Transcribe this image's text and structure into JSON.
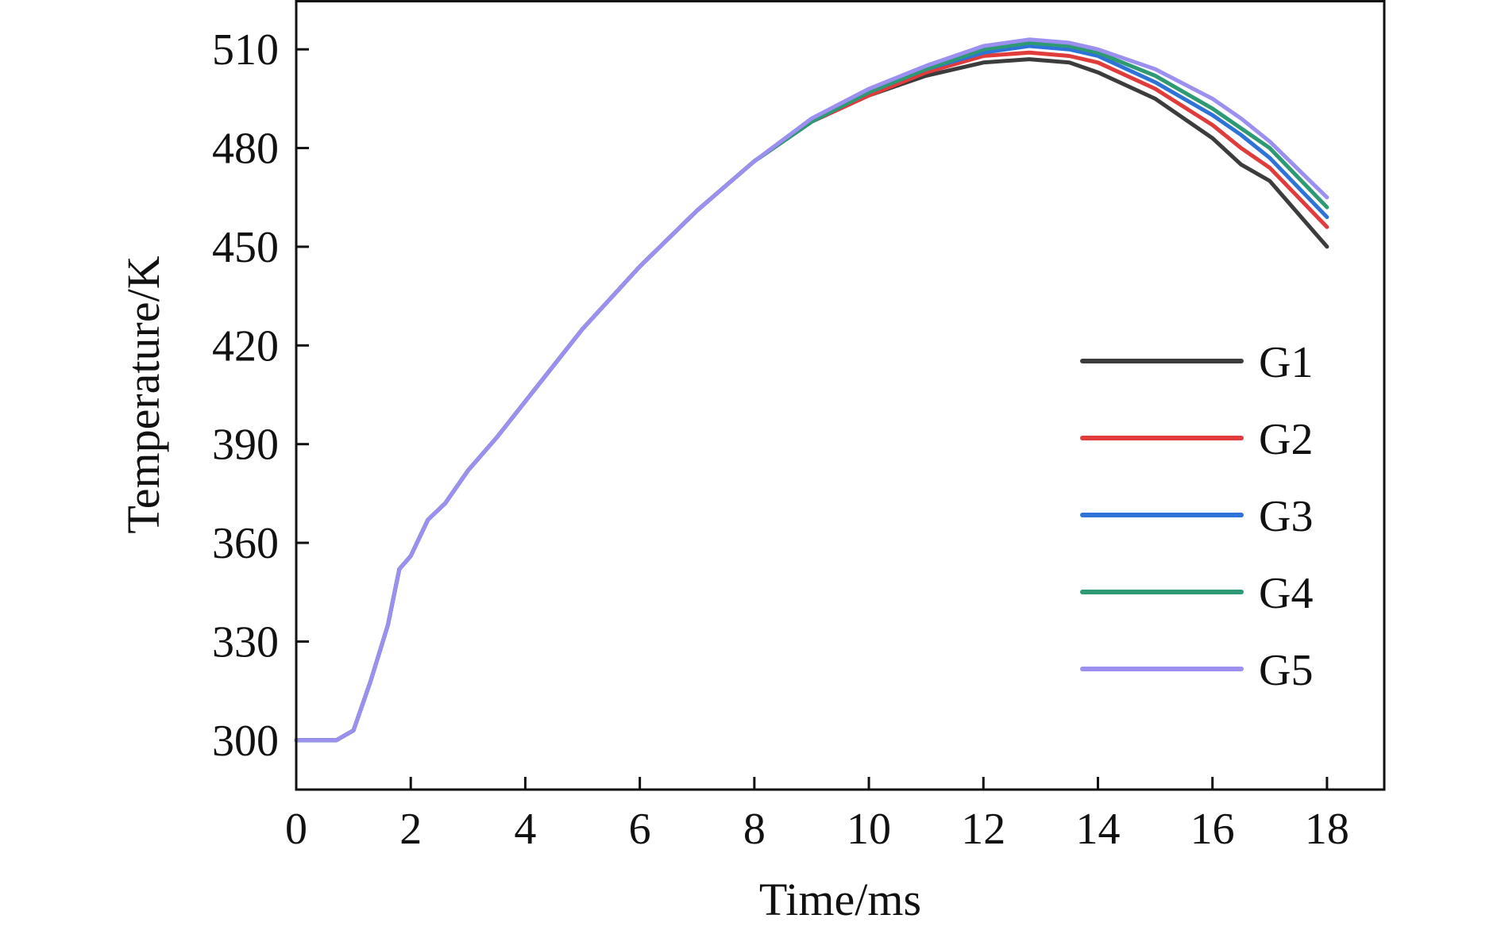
{
  "chart_data": {
    "type": "line",
    "title": "",
    "xlabel": "Time/ms",
    "ylabel": "Temperature/K",
    "xlim": [
      0,
      19
    ],
    "ylim": [
      285,
      525
    ],
    "xticks": [
      0,
      2,
      4,
      6,
      8,
      10,
      12,
      14,
      16,
      18
    ],
    "yticks": [
      300,
      330,
      360,
      390,
      420,
      450,
      480,
      510
    ],
    "grid": false,
    "legend": "right",
    "x": [
      0,
      0.7,
      1.0,
      1.3,
      1.6,
      1.8,
      2.0,
      2.3,
      2.6,
      3.0,
      3.5,
      4.0,
      5.0,
      6.0,
      7.0,
      8.0,
      9.0,
      10.0,
      11.0,
      12.0,
      12.8,
      13.5,
      14.0,
      15.0,
      16.0,
      16.5,
      17.0,
      18.0
    ],
    "series": [
      {
        "name": "G1",
        "color": "#3c3c3c",
        "values": [
          300,
          300,
          303,
          318,
          335,
          352,
          356,
          367,
          372,
          382,
          392,
          403,
          425,
          444,
          461,
          476,
          488,
          496,
          502,
          506,
          507,
          506,
          503,
          495,
          483,
          475,
          470,
          450
        ]
      },
      {
        "name": "G2",
        "color": "#e03c3c",
        "values": [
          300,
          300,
          303,
          318,
          335,
          352,
          356,
          367,
          372,
          382,
          392,
          403,
          425,
          444,
          461,
          476,
          488,
          496,
          503,
          508,
          509,
          508,
          506,
          498,
          487,
          480,
          474,
          456
        ]
      },
      {
        "name": "G3",
        "color": "#2f73d8",
        "values": [
          300,
          300,
          303,
          318,
          335,
          352,
          356,
          367,
          372,
          382,
          392,
          403,
          425,
          444,
          461,
          476,
          488,
          497,
          504,
          509,
          511,
          510,
          508,
          500,
          490,
          484,
          477,
          459
        ]
      },
      {
        "name": "G4",
        "color": "#2e9a74",
        "values": [
          300,
          300,
          303,
          318,
          335,
          352,
          356,
          367,
          372,
          382,
          392,
          403,
          425,
          444,
          461,
          476,
          488,
          497,
          504,
          510,
          512,
          511,
          509,
          502,
          492,
          486,
          480,
          462
        ]
      },
      {
        "name": "G5",
        "color": "#9b8ff0",
        "values": [
          300,
          300,
          303,
          318,
          335,
          352,
          356,
          367,
          372,
          382,
          392,
          403,
          425,
          444,
          461,
          476,
          489,
          498,
          505,
          511,
          513,
          512,
          510,
          504,
          495,
          489,
          482,
          465
        ]
      }
    ]
  }
}
